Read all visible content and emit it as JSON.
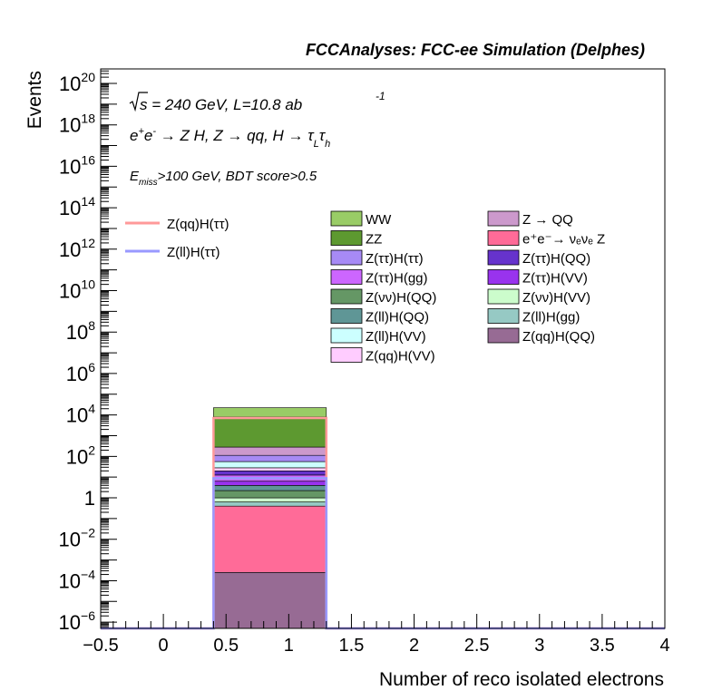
{
  "chart_data": {
    "type": "bar",
    "log_y": true,
    "xlim": [
      -0.5,
      4
    ],
    "ylim_exp": [
      -6.3,
      20.7
    ],
    "x_ticks_major": [
      -0.5,
      0,
      0.5,
      1,
      1.5,
      2,
      2.5,
      3,
      3.5,
      4
    ],
    "x_tick_labels": [
      "−0.5",
      "0",
      "0.5",
      "1",
      "1.5",
      "2",
      "2.5",
      "3",
      "3.5",
      "4"
    ],
    "y_tick_exponents": [
      -6,
      -4,
      -2,
      0,
      2,
      4,
      6,
      8,
      10,
      12,
      14,
      16,
      18,
      20
    ],
    "y_tick_one_label": "1",
    "y_tick_base": "10",
    "xlabel": "Number of reco isolated electrons",
    "ylabel": "Events",
    "title": "FCCAnalyses: FCC-ee Simulation (Delphes)",
    "annotations": {
      "sqrt_s": "s = 240 GeV, L=10.8 ab",
      "lumi_exp": "-1",
      "process_a": "e",
      "process_a_sup1": "+",
      "process_a_mid": "e",
      "process_a_sup2": "-",
      "process_b": " → Z H, Z  → qq, H  → ",
      "tau": "τ",
      "tau_sub_L": "L",
      "tau_sub_h": "h",
      "selection_e": "E",
      "selection_sub": "miss",
      "selection_rest": ">100 GeV, BDT score>0.5"
    },
    "bin": {
      "x0": 0.4,
      "x1": 1.3
    },
    "stack": [
      {
        "name": "Z(qq)H(QQ)",
        "color": "#976b94",
        "log_bottom": -6.3,
        "log_top": -3.6
      },
      {
        "name": "e+e- → νeνe Z",
        "color": "#ff6b98",
        "log_bottom": -3.6,
        "log_top": -0.4
      },
      {
        "name": "Z(ll)H(gg)",
        "color": "#96c9c4",
        "log_bottom": -0.4,
        "log_top": -0.2
      },
      {
        "name": "Z(νν)H(VV)",
        "color": "#ccfccc",
        "log_bottom": -0.2,
        "log_top": 0.0
      },
      {
        "name": "Z(νν)H(QQ)",
        "color": "#659765",
        "log_bottom": 0.0,
        "log_top": 0.35
      },
      {
        "name": "Z(ll)H(QQ)",
        "color": "#5f9696",
        "log_bottom": 0.35,
        "log_top": 0.6
      },
      {
        "name": "Z(ττ)H(VV)",
        "color": "#9933ee",
        "log_bottom": 0.6,
        "log_top": 0.8
      },
      {
        "name": "Z(ττ)H(gg)",
        "color": "#cc66ff",
        "log_bottom": 0.8,
        "log_top": 1.1
      },
      {
        "name": "Z(ττ)H(QQ)",
        "color": "#6633cc",
        "log_bottom": 1.1,
        "log_top": 1.3
      },
      {
        "name": "Z(qq)H(VV)",
        "color": "#ffccff",
        "log_bottom": 1.3,
        "log_top": 1.45
      },
      {
        "name": "Z(ll)H(VV)",
        "color": "#ccffff",
        "log_bottom": 1.45,
        "log_top": 1.75
      },
      {
        "name": "Z(ττ)H(ττ)",
        "color": "#a78af5",
        "log_bottom": 1.75,
        "log_top": 2.05
      },
      {
        "name": "Z → QQ",
        "color": "#cc99cc",
        "log_bottom": 2.05,
        "log_top": 2.45
      },
      {
        "name": "ZZ",
        "color": "#5d9930",
        "log_bottom": 2.45,
        "log_top": 3.9
      },
      {
        "name": "WW",
        "color": "#99cc66",
        "log_bottom": 3.9,
        "log_top": 4.35
      }
    ],
    "signal_lines": [
      {
        "name": "Z(qq)H(ττ)",
        "color": "#ff9999",
        "log_value": 3.85
      },
      {
        "name": "Z(ll)H(ττ)",
        "color": "#9999ff",
        "log_value": 0.95
      }
    ],
    "legend_left": [
      {
        "name": "Z(qq)H(ττ)",
        "color": "#ff9999"
      },
      {
        "name": "Z(ll)H(ττ)",
        "color": "#9999ff"
      }
    ],
    "legend_col1": [
      {
        "name": "WW",
        "color": "#99cc66"
      },
      {
        "name": "ZZ",
        "color": "#5d9930"
      },
      {
        "name": "Z(ττ)H(ττ)",
        "color": "#a78af5"
      },
      {
        "name": "Z(ττ)H(gg)",
        "color": "#cc66ff"
      },
      {
        "name": "Z(νν)H(QQ)",
        "color": "#659765"
      },
      {
        "name": "Z(ll)H(QQ)",
        "color": "#5f9696"
      },
      {
        "name": "Z(ll)H(VV)",
        "color": "#ccffff"
      },
      {
        "name": "Z(qq)H(VV)",
        "color": "#ffccff"
      }
    ],
    "legend_col2": [
      {
        "name": "Z → QQ",
        "color": "#cc99cc"
      },
      {
        "name": "e⁺e⁻→ νₑνₑ Z",
        "color": "#ff6b98"
      },
      {
        "name": "Z(ττ)H(QQ)",
        "color": "#6633cc"
      },
      {
        "name": "Z(ττ)H(VV)",
        "color": "#9933ee"
      },
      {
        "name": "Z(νν)H(VV)",
        "color": "#ccfccc"
      },
      {
        "name": "Z(ll)H(gg)",
        "color": "#96c9c4"
      },
      {
        "name": "Z(qq)H(QQ)",
        "color": "#976b94"
      }
    ]
  }
}
